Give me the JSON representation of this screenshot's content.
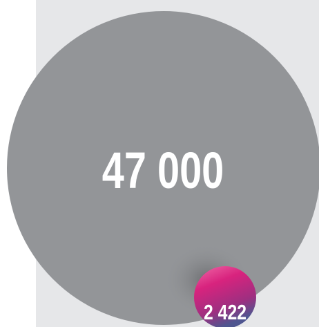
{
  "big_value": "47 000",
  "small_value": "2 422"
}
